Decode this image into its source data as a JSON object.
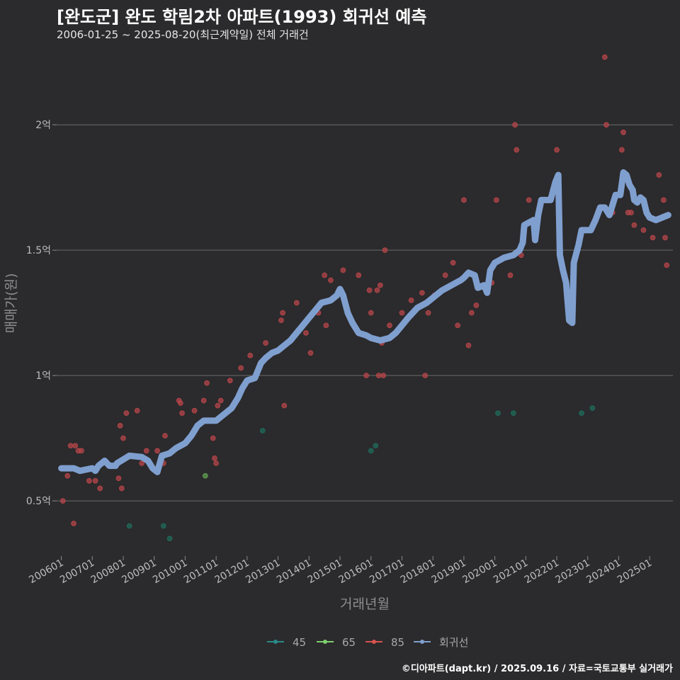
{
  "title": "[완도군] 완도 학림2차 아파트(1993) 회귀선 예측",
  "subtitle": "2006-01-25 ~ 2025-08-20(최근계약일) 전체 거래건",
  "caption": "©디아파트(dapt.kr) / 2025.09.16 / 자료=국토교통부 실거래가",
  "chart_data": {
    "type": "scatter",
    "title": "[완도군] 완도 학림2차 아파트(1993) 회귀선 예측",
    "xlabel": "거래년월",
    "ylabel": "매매가(원)",
    "xlim": [
      2005.85,
      2025.75
    ],
    "ylim": [
      0.28,
      2.3
    ],
    "y_unit": "억",
    "y_ticks": [
      {
        "value": 0.5,
        "label": "0.5억"
      },
      {
        "value": 1.0,
        "label": "1억"
      },
      {
        "value": 1.5,
        "label": "1.5억"
      },
      {
        "value": 2.0,
        "label": "2억"
      }
    ],
    "x_ticks": [
      {
        "value": 2006,
        "label": "200601"
      },
      {
        "value": 2007,
        "label": "200701"
      },
      {
        "value": 2008,
        "label": "200801"
      },
      {
        "value": 2009,
        "label": "200901"
      },
      {
        "value": 2010,
        "label": "201001"
      },
      {
        "value": 2011,
        "label": "201101"
      },
      {
        "value": 2012,
        "label": "201201"
      },
      {
        "value": 2013,
        "label": "201301"
      },
      {
        "value": 2014,
        "label": "201401"
      },
      {
        "value": 2015,
        "label": "201501"
      },
      {
        "value": 2016,
        "label": "201601"
      },
      {
        "value": 2017,
        "label": "201701"
      },
      {
        "value": 2018,
        "label": "201801"
      },
      {
        "value": 2019,
        "label": "201901"
      },
      {
        "value": 2020,
        "label": "202001"
      },
      {
        "value": 2021,
        "label": "202101"
      },
      {
        "value": 2022,
        "label": "202201"
      },
      {
        "value": 2023,
        "label": "202301"
      },
      {
        "value": 2024,
        "label": "202401"
      },
      {
        "value": 2025,
        "label": "202501"
      }
    ],
    "legend": [
      {
        "name": "45",
        "color": "#2a8a8a"
      },
      {
        "name": "65",
        "color": "#7fcf6f"
      },
      {
        "name": "85",
        "color": "#d9534f"
      },
      {
        "name": "회귀선",
        "color": "#7f9fcf"
      }
    ],
    "series": [
      {
        "name": "45",
        "color": "#1f6b5a",
        "points": [
          [
            2008.2,
            0.4
          ],
          [
            2009.3,
            0.4
          ],
          [
            2009.5,
            0.35
          ],
          [
            2012.5,
            0.78
          ],
          [
            2016.0,
            0.7
          ],
          [
            2016.15,
            0.72
          ],
          [
            2020.1,
            0.85
          ],
          [
            2020.6,
            0.85
          ],
          [
            2022.8,
            0.85
          ],
          [
            2023.15,
            0.87
          ]
        ]
      },
      {
        "name": "65",
        "color": "#5f9f4f",
        "points": [
          [
            2010.65,
            0.6
          ]
        ]
      },
      {
        "name": "85",
        "color": "#b5464a",
        "points": [
          [
            2006.05,
            0.5
          ],
          [
            2006.2,
            0.6
          ],
          [
            2006.3,
            0.72
          ],
          [
            2006.4,
            0.41
          ],
          [
            2006.45,
            0.72
          ],
          [
            2006.55,
            0.7
          ],
          [
            2006.65,
            0.7
          ],
          [
            2006.9,
            0.58
          ],
          [
            2007.1,
            0.58
          ],
          [
            2007.25,
            0.55
          ],
          [
            2007.85,
            0.59
          ],
          [
            2007.9,
            0.8
          ],
          [
            2007.95,
            0.55
          ],
          [
            2008.0,
            0.75
          ],
          [
            2008.1,
            0.85
          ],
          [
            2008.45,
            0.86
          ],
          [
            2008.6,
            0.65
          ],
          [
            2008.75,
            0.7
          ],
          [
            2009.1,
            0.7
          ],
          [
            2009.3,
            0.65
          ],
          [
            2009.35,
            0.76
          ],
          [
            2009.6,
            0.7
          ],
          [
            2009.8,
            0.9
          ],
          [
            2009.85,
            0.89
          ],
          [
            2009.9,
            0.85
          ],
          [
            2010.3,
            0.86
          ],
          [
            2010.6,
            0.9
          ],
          [
            2010.7,
            0.97
          ],
          [
            2010.9,
            0.75
          ],
          [
            2010.95,
            0.67
          ],
          [
            2011.0,
            0.65
          ],
          [
            2011.05,
            0.88
          ],
          [
            2011.15,
            0.9
          ],
          [
            2011.45,
            0.98
          ],
          [
            2011.8,
            1.03
          ],
          [
            2012.1,
            1.08
          ],
          [
            2012.6,
            1.13
          ],
          [
            2013.1,
            1.22
          ],
          [
            2013.15,
            1.25
          ],
          [
            2013.2,
            0.88
          ],
          [
            2013.6,
            1.29
          ],
          [
            2013.9,
            1.17
          ],
          [
            2014.05,
            1.09
          ],
          [
            2014.3,
            1.25
          ],
          [
            2014.5,
            1.4
          ],
          [
            2014.55,
            1.2
          ],
          [
            2014.7,
            1.38
          ],
          [
            2015.1,
            1.42
          ],
          [
            2015.6,
            1.4
          ],
          [
            2015.85,
            1.0
          ],
          [
            2015.95,
            1.34
          ],
          [
            2016.0,
            1.25
          ],
          [
            2016.2,
            1.34
          ],
          [
            2016.25,
            1.0
          ],
          [
            2016.3,
            1.36
          ],
          [
            2016.35,
            1.13
          ],
          [
            2016.4,
            1.0
          ],
          [
            2016.45,
            1.5
          ],
          [
            2016.6,
            1.2
          ],
          [
            2017.0,
            1.25
          ],
          [
            2017.3,
            1.3
          ],
          [
            2017.65,
            1.33
          ],
          [
            2017.75,
            1.0
          ],
          [
            2017.85,
            1.25
          ],
          [
            2018.05,
            1.32
          ],
          [
            2018.4,
            1.4
          ],
          [
            2018.65,
            1.45
          ],
          [
            2018.8,
            1.2
          ],
          [
            2019.0,
            1.7
          ],
          [
            2019.15,
            1.12
          ],
          [
            2019.25,
            1.25
          ],
          [
            2019.4,
            1.28
          ],
          [
            2019.9,
            1.37
          ],
          [
            2020.05,
            1.7
          ],
          [
            2020.5,
            1.4
          ],
          [
            2020.65,
            2.0
          ],
          [
            2020.7,
            1.9
          ],
          [
            2020.85,
            1.48
          ],
          [
            2021.1,
            1.7
          ],
          [
            2022.0,
            1.9
          ],
          [
            2023.55,
            2.27
          ],
          [
            2023.6,
            2.0
          ],
          [
            2023.8,
            1.65
          ],
          [
            2024.1,
            1.9
          ],
          [
            2024.15,
            1.97
          ],
          [
            2024.3,
            1.65
          ],
          [
            2024.4,
            1.65
          ],
          [
            2024.5,
            1.6
          ],
          [
            2024.8,
            1.58
          ],
          [
            2025.1,
            1.55
          ],
          [
            2025.3,
            1.8
          ],
          [
            2025.45,
            1.7
          ],
          [
            2025.5,
            1.55
          ],
          [
            2025.55,
            1.44
          ]
        ]
      },
      {
        "name": "회귀선",
        "color": "#7f9fcf",
        "line": [
          [
            2006.0,
            0.63
          ],
          [
            2006.4,
            0.63
          ],
          [
            2006.6,
            0.62
          ],
          [
            2007.0,
            0.63
          ],
          [
            2007.1,
            0.62
          ],
          [
            2007.2,
            0.64
          ],
          [
            2007.4,
            0.66
          ],
          [
            2007.55,
            0.64
          ],
          [
            2007.75,
            0.64
          ],
          [
            2007.8,
            0.65
          ],
          [
            2008.0,
            0.665
          ],
          [
            2008.2,
            0.68
          ],
          [
            2008.6,
            0.675
          ],
          [
            2008.8,
            0.66
          ],
          [
            2008.95,
            0.63
          ],
          [
            2009.1,
            0.615
          ],
          [
            2009.25,
            0.68
          ],
          [
            2009.5,
            0.69
          ],
          [
            2009.7,
            0.71
          ],
          [
            2010.0,
            0.73
          ],
          [
            2010.2,
            0.76
          ],
          [
            2010.4,
            0.8
          ],
          [
            2010.6,
            0.82
          ],
          [
            2011.0,
            0.82
          ],
          [
            2011.2,
            0.84
          ],
          [
            2011.5,
            0.87
          ],
          [
            2011.7,
            0.91
          ],
          [
            2011.85,
            0.95
          ],
          [
            2012.0,
            0.98
          ],
          [
            2012.25,
            0.99
          ],
          [
            2012.45,
            1.05
          ],
          [
            2012.6,
            1.07
          ],
          [
            2012.8,
            1.09
          ],
          [
            2013.0,
            1.1
          ],
          [
            2013.2,
            1.12
          ],
          [
            2013.4,
            1.14
          ],
          [
            2013.6,
            1.17
          ],
          [
            2013.8,
            1.2
          ],
          [
            2014.0,
            1.23
          ],
          [
            2014.2,
            1.26
          ],
          [
            2014.4,
            1.29
          ],
          [
            2014.7,
            1.3
          ],
          [
            2014.9,
            1.32
          ],
          [
            2015.0,
            1.345
          ],
          [
            2015.1,
            1.32
          ],
          [
            2015.25,
            1.25
          ],
          [
            2015.4,
            1.21
          ],
          [
            2015.6,
            1.17
          ],
          [
            2015.85,
            1.16
          ],
          [
            2016.0,
            1.15
          ],
          [
            2016.3,
            1.14
          ],
          [
            2016.6,
            1.15
          ],
          [
            2016.8,
            1.17
          ],
          [
            2017.0,
            1.2
          ],
          [
            2017.2,
            1.23
          ],
          [
            2017.5,
            1.27
          ],
          [
            2017.8,
            1.29
          ],
          [
            2018.0,
            1.31
          ],
          [
            2018.3,
            1.34
          ],
          [
            2018.6,
            1.36
          ],
          [
            2018.9,
            1.38
          ],
          [
            2019.0,
            1.39
          ],
          [
            2019.15,
            1.41
          ],
          [
            2019.35,
            1.4
          ],
          [
            2019.45,
            1.35
          ],
          [
            2019.65,
            1.36
          ],
          [
            2019.75,
            1.33
          ],
          [
            2019.85,
            1.42
          ],
          [
            2020.0,
            1.45
          ],
          [
            2020.3,
            1.47
          ],
          [
            2020.6,
            1.48
          ],
          [
            2020.8,
            1.5
          ],
          [
            2020.9,
            1.53
          ],
          [
            2020.95,
            1.6
          ],
          [
            2021.1,
            1.61
          ],
          [
            2021.25,
            1.62
          ],
          [
            2021.3,
            1.54
          ],
          [
            2021.4,
            1.64
          ],
          [
            2021.5,
            1.7
          ],
          [
            2021.8,
            1.7
          ],
          [
            2021.95,
            1.77
          ],
          [
            2022.05,
            1.8
          ],
          [
            2022.1,
            1.48
          ],
          [
            2022.2,
            1.42
          ],
          [
            2022.3,
            1.37
          ],
          [
            2022.4,
            1.22
          ],
          [
            2022.5,
            1.21
          ],
          [
            2022.55,
            1.45
          ],
          [
            2022.7,
            1.52
          ],
          [
            2022.8,
            1.58
          ],
          [
            2023.1,
            1.58
          ],
          [
            2023.25,
            1.62
          ],
          [
            2023.4,
            1.67
          ],
          [
            2023.55,
            1.67
          ],
          [
            2023.7,
            1.64
          ],
          [
            2023.9,
            1.72
          ],
          [
            2024.05,
            1.72
          ],
          [
            2024.15,
            1.81
          ],
          [
            2024.25,
            1.8
          ],
          [
            2024.35,
            1.76
          ],
          [
            2024.45,
            1.74
          ],
          [
            2024.5,
            1.7
          ],
          [
            2024.6,
            1.69
          ],
          [
            2024.7,
            1.71
          ],
          [
            2024.8,
            1.7
          ],
          [
            2024.9,
            1.65
          ],
          [
            2025.0,
            1.63
          ],
          [
            2025.2,
            1.62
          ],
          [
            2025.4,
            1.63
          ],
          [
            2025.6,
            1.64
          ]
        ]
      }
    ]
  }
}
